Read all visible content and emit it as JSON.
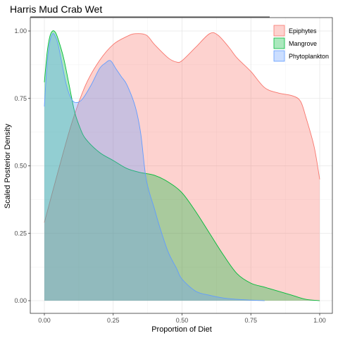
{
  "chart_data": {
    "type": "area",
    "title": "Harris Mud Crab Wet",
    "xlabel": "Proportion of Diet",
    "ylabel": "Scaled Posterior Density",
    "xlim": [
      0,
      1
    ],
    "ylim": [
      0,
      1
    ],
    "xticks": [
      "0.00",
      "0.25",
      "0.50",
      "0.75",
      "1.00"
    ],
    "yticks": [
      "0.00",
      "0.25",
      "0.50",
      "0.75",
      "1.00"
    ],
    "grid": true,
    "legend_position": "top-right",
    "series": [
      {
        "name": "Epiphytes",
        "fill": "#F8766D",
        "x": [
          0.0,
          0.05,
          0.1,
          0.15,
          0.2,
          0.25,
          0.3,
          0.33,
          0.37,
          0.4,
          0.45,
          0.48,
          0.5,
          0.55,
          0.6,
          0.63,
          0.67,
          0.7,
          0.75,
          0.8,
          0.85,
          0.9,
          0.93,
          0.95,
          0.98,
          1.0
        ],
        "y": [
          0.29,
          0.48,
          0.66,
          0.8,
          0.89,
          0.95,
          0.98,
          0.99,
          0.985,
          0.95,
          0.9,
          0.885,
          0.89,
          0.94,
          0.99,
          0.985,
          0.94,
          0.9,
          0.85,
          0.79,
          0.77,
          0.76,
          0.74,
          0.68,
          0.57,
          0.45
        ]
      },
      {
        "name": "Mangrove",
        "fill": "#00BA38",
        "x": [
          0.0,
          0.01,
          0.02,
          0.03,
          0.04,
          0.05,
          0.07,
          0.09,
          0.11,
          0.13,
          0.15,
          0.2,
          0.25,
          0.3,
          0.35,
          0.4,
          0.45,
          0.5,
          0.55,
          0.6,
          0.65,
          0.7,
          0.75,
          0.8,
          0.85,
          0.9,
          0.95,
          1.0
        ],
        "y": [
          0.81,
          0.92,
          0.98,
          1.0,
          0.995,
          0.97,
          0.9,
          0.8,
          0.7,
          0.64,
          0.6,
          0.55,
          0.52,
          0.49,
          0.475,
          0.465,
          0.44,
          0.4,
          0.33,
          0.25,
          0.17,
          0.1,
          0.065,
          0.05,
          0.035,
          0.02,
          0.005,
          0.0
        ]
      },
      {
        "name": "Phytoplankton",
        "fill": "#619CFF",
        "x": [
          0.0,
          0.01,
          0.02,
          0.03,
          0.04,
          0.05,
          0.06,
          0.08,
          0.1,
          0.12,
          0.14,
          0.17,
          0.2,
          0.22,
          0.24,
          0.26,
          0.28,
          0.3,
          0.33,
          0.35,
          0.37,
          0.4,
          0.42,
          0.45,
          0.48,
          0.5,
          0.55,
          0.6,
          0.65,
          0.7,
          0.75,
          0.8
        ],
        "y": [
          0.72,
          0.88,
          0.96,
          0.99,
          0.98,
          0.95,
          0.9,
          0.8,
          0.745,
          0.735,
          0.75,
          0.8,
          0.86,
          0.88,
          0.89,
          0.86,
          0.83,
          0.8,
          0.72,
          0.62,
          0.45,
          0.34,
          0.27,
          0.18,
          0.12,
          0.08,
          0.035,
          0.02,
          0.01,
          0.005,
          0.002,
          0.0
        ]
      }
    ]
  }
}
